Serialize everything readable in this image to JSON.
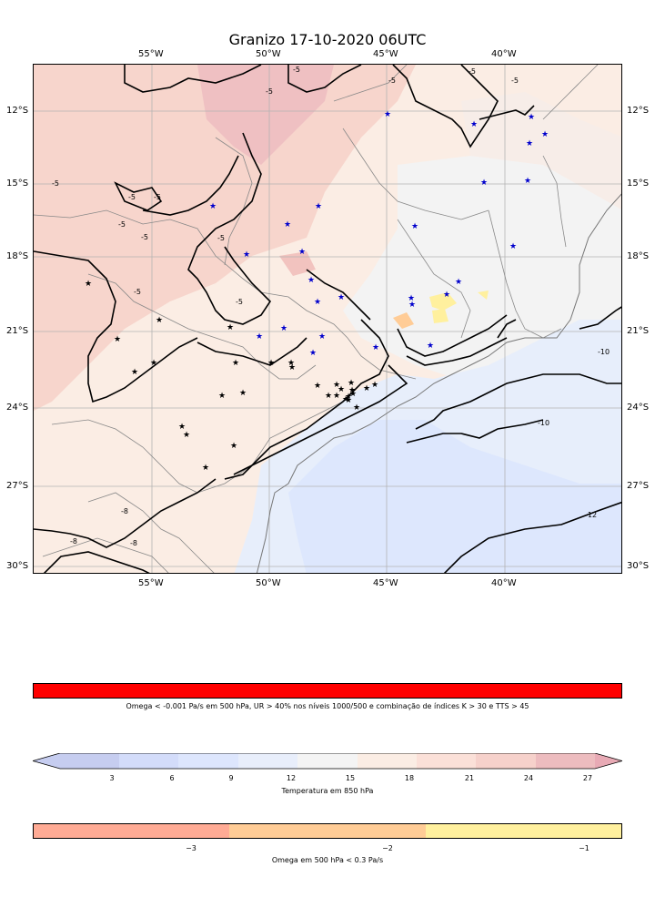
{
  "title": "Granizo 17-10-2020 06UTC",
  "lon_ticks": [
    "55°W",
    "50°W",
    "45°W",
    "40°W"
  ],
  "lat_ticks": [
    "12°S",
    "15°S",
    "18°S",
    "21°S",
    "24°S",
    "27°S",
    "30°S"
  ],
  "contour_labels": [
    "-5",
    "-5",
    "-5",
    "-5",
    "-5",
    "-5",
    "-5",
    "-5",
    "-5",
    "-5",
    "-5",
    "-5",
    "-5",
    "-8",
    "-8",
    "-8",
    "-10",
    "-10",
    "-12"
  ],
  "colorbars": {
    "condition": {
      "label": "Omega < -0.001 Pa/s em 500 hPa, UR > 40% nos níveis 1000/500 e combinação de índices K > 30 e TTS > 45",
      "color": "#ff0000"
    },
    "temperature": {
      "label": "Temperatura em 850 hPa",
      "ticks": [
        "3",
        "6",
        "9",
        "12",
        "15",
        "18",
        "21",
        "24",
        "27"
      ],
      "colors": [
        "#c6cdf0",
        "#d3dcfa",
        "#dde6fd",
        "#e8eefb",
        "#f4f4f4",
        "#fbede4",
        "#fbe0d8",
        "#f6d1cb",
        "#edbcbf",
        "#e8aab5"
      ]
    },
    "omega": {
      "label": "Omega em 500 hPa < 0.3 Pa/s",
      "ticks": [
        "−3",
        "−2",
        "−1"
      ],
      "colors": [
        "#ffab95",
        "#ffcc96",
        "#fff09e"
      ]
    }
  },
  "stations": {
    "blue_count": 25,
    "black_count": 33,
    "colors": {
      "blue": "#0000cc",
      "black": "#000000"
    }
  }
}
